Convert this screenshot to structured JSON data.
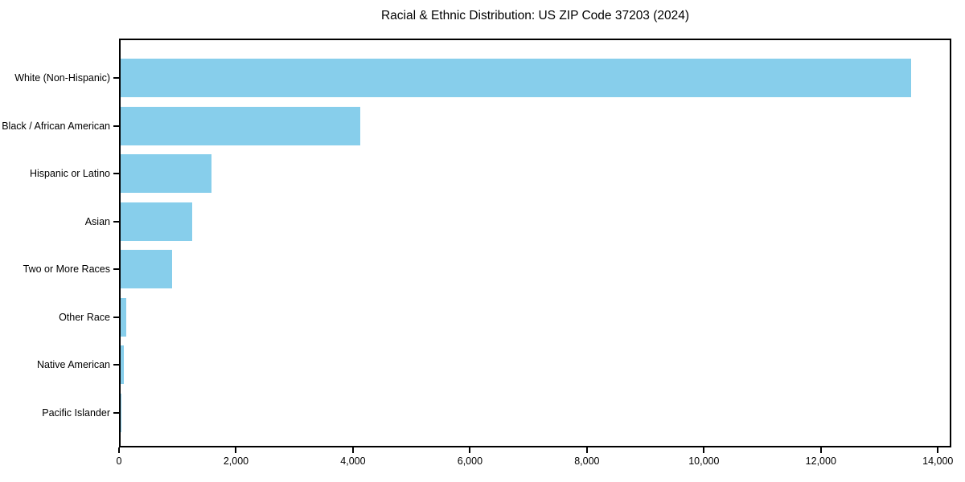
{
  "chart_data": {
    "type": "bar",
    "orientation": "horizontal",
    "title": "Racial & Ethnic Distribution: US ZIP Code 37203 (2024)",
    "xlabel": "",
    "ylabel": "",
    "categories": [
      "White (Non-Hispanic)",
      "Black / African American",
      "Hispanic or Latino",
      "Asian",
      "Two or More Races",
      "Other Race",
      "Native American",
      "Pacific Islander"
    ],
    "values": [
      13570,
      4110,
      1565,
      1225,
      880,
      100,
      50,
      5
    ],
    "xlim": [
      0,
      14230
    ],
    "x_ticks": [
      0,
      2000,
      4000,
      6000,
      8000,
      10000,
      12000,
      14000
    ],
    "x_tick_labels": [
      "0",
      "2,000",
      "4,000",
      "6,000",
      "8,000",
      "10,000",
      "12,000",
      "14,000"
    ],
    "grid": false,
    "legend": null,
    "bar_color": "#87CEEB",
    "axis_color": "#000000",
    "text_color": "#000000",
    "background_color": "#ffffff"
  }
}
